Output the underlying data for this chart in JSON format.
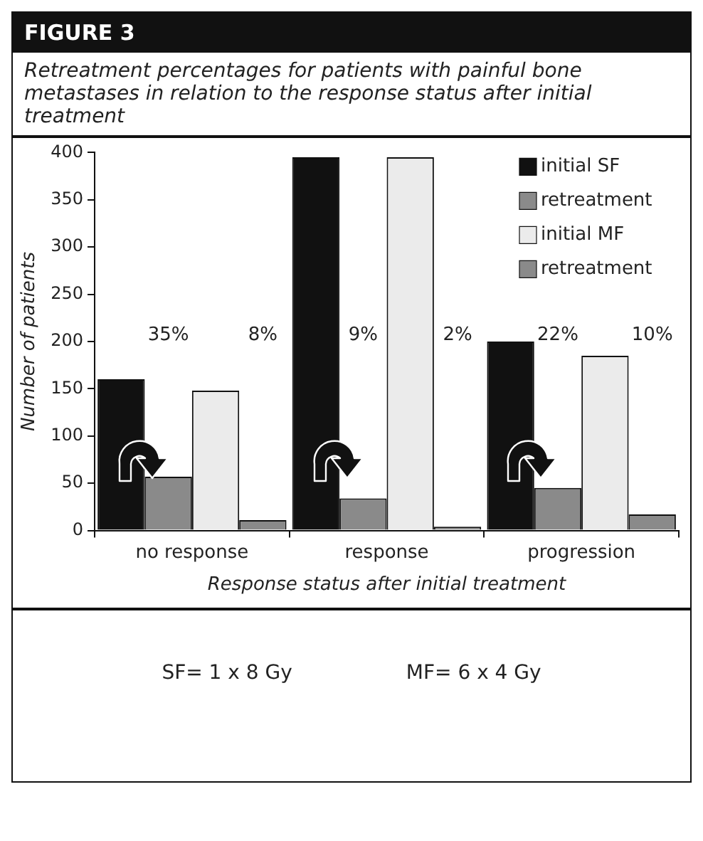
{
  "chart_data": {
    "type": "bar",
    "title": "FIGURE 3",
    "subtitle": "Retreatment percentages for patients with painful bone metastases in relation to the response status after initial treatment",
    "xlabel": "Response status after initial treatment",
    "ylabel": "Number of patients",
    "categories": [
      "no response",
      "response",
      "progression"
    ],
    "series": [
      {
        "name": "initial SF",
        "color": "#111111",
        "values": [
          160,
          395,
          200
        ]
      },
      {
        "name": "retreatment",
        "color": "#8a8a8a",
        "values": [
          57,
          34,
          45
        ]
      },
      {
        "name": "initial MF",
        "color": "#ebebeb",
        "values": [
          148,
          395,
          185
        ]
      },
      {
        "name": "retreatment",
        "color": "#8a8a8a",
        "values": [
          11,
          4,
          17
        ]
      }
    ],
    "ylim": [
      0,
      400
    ],
    "yticks": [
      0,
      50,
      100,
      150,
      200,
      250,
      300,
      350,
      400
    ],
    "grid": false,
    "legend": "top right",
    "annotations": [
      "35%",
      "8%",
      "9%",
      "2%",
      "22%",
      "10%",
      "SF= 1 x 8 Gy",
      "MF= 6 x 4 Gy"
    ]
  }
}
